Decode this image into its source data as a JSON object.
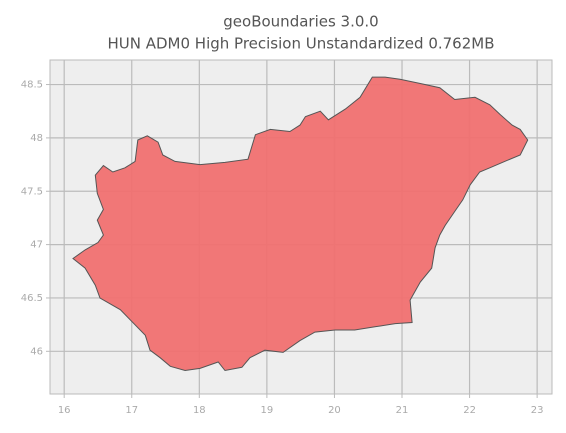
{
  "chart_data": {
    "type": "map",
    "title": "geoBoundaries 3.0.0",
    "subtitle": "HUN ADM0 High Precision Unstandardized 0.762MB",
    "color": "#f07070",
    "edge_color": "#555555",
    "grid": true,
    "xlim": [
      15.79,
      23.22
    ],
    "ylim": [
      45.6,
      48.73
    ],
    "xticks": [
      16,
      17,
      18,
      19,
      20,
      21,
      22,
      23
    ],
    "yticks": [
      46.0,
      46.5,
      47.0,
      47.5,
      48.0,
      48.5
    ],
    "x": [
      16.13,
      16.31,
      16.5,
      16.58,
      16.49,
      16.58,
      16.49,
      16.46,
      16.58,
      16.72,
      16.9,
      17.05,
      17.09,
      17.23,
      17.39,
      17.46,
      17.64,
      18.01,
      18.38,
      18.72,
      18.83,
      19.05,
      19.34,
      19.49,
      19.57,
      19.79,
      19.91,
      20.16,
      20.38,
      20.56,
      20.75,
      20.97,
      21.27,
      21.56,
      21.78,
      22.08,
      22.3,
      22.45,
      22.63,
      22.75,
      22.86,
      22.75,
      22.52,
      22.3,
      22.15,
      22.01,
      21.9,
      21.78,
      21.64,
      21.56,
      21.49,
      21.44,
      21.27,
      21.12,
      21.15,
      20.9,
      20.6,
      20.3,
      20.01,
      19.71,
      19.49,
      19.24,
      18.97,
      18.75,
      18.63,
      18.38,
      18.28,
      18.01,
      17.79,
      17.57,
      17.42,
      17.27,
      17.2,
      16.83,
      16.53,
      16.46,
      16.31
    ],
    "y": [
      46.87,
      46.95,
      47.02,
      47.09,
      47.23,
      47.33,
      47.48,
      47.65,
      47.74,
      47.68,
      47.72,
      47.78,
      47.98,
      48.02,
      47.96,
      47.84,
      47.78,
      47.75,
      47.77,
      47.8,
      48.03,
      48.08,
      48.06,
      48.12,
      48.2,
      48.25,
      48.17,
      48.27,
      48.38,
      48.57,
      48.57,
      48.55,
      48.51,
      48.47,
      48.36,
      48.38,
      48.31,
      48.22,
      48.12,
      48.08,
      47.98,
      47.84,
      47.78,
      47.72,
      47.68,
      47.56,
      47.42,
      47.31,
      47.18,
      47.09,
      46.97,
      46.78,
      46.65,
      46.48,
      46.27,
      46.26,
      46.23,
      46.2,
      46.2,
      46.18,
      46.1,
      45.99,
      46.01,
      45.94,
      45.85,
      45.82,
      45.9,
      45.84,
      45.82,
      45.86,
      45.94,
      46.01,
      46.15,
      46.39,
      46.5,
      46.62,
      46.78
    ]
  }
}
